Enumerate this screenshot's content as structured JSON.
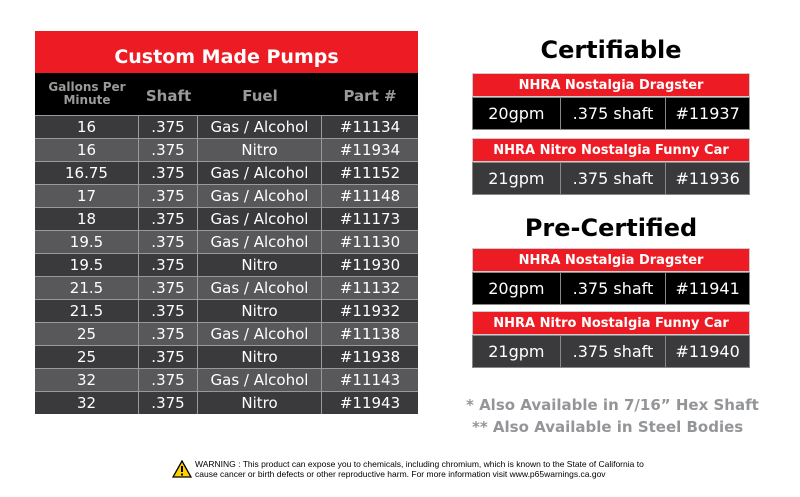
{
  "main_table": {
    "title": "Custom Made Pumps",
    "headers": [
      "Gallons Per Minute",
      "Shaft",
      "Fuel",
      "Part #"
    ],
    "rows": [
      [
        "16",
        ".375",
        "Gas / Alcohol",
        "#11134"
      ],
      [
        "16",
        ".375",
        "Nitro",
        "#11934"
      ],
      [
        "16.75",
        ".375",
        "Gas / Alcohol",
        "#11152"
      ],
      [
        "17",
        ".375",
        "Gas / Alcohol",
        "#11148"
      ],
      [
        "18",
        ".375",
        "Gas / Alcohol",
        "#11173"
      ],
      [
        "19.5",
        ".375",
        "Gas / Alcohol",
        "#11130"
      ],
      [
        "19.5",
        ".375",
        "Nitro",
        "#11930"
      ],
      [
        "21.5",
        ".375",
        "Gas / Alcohol",
        "#11132"
      ],
      [
        "21.5",
        ".375",
        "Nitro",
        "#11932"
      ],
      [
        "25",
        ".375",
        "Gas / Alcohol",
        "#11138"
      ],
      [
        "25",
        ".375",
        "Nitro",
        "#11938"
      ],
      [
        "32",
        ".375",
        "Gas / Alcohol",
        "#11143"
      ],
      [
        "32",
        ".375",
        "Nitro",
        "#11943"
      ]
    ]
  },
  "certifiable": {
    "title": "Certifiable",
    "boxes": [
      {
        "name": "NHRA Nostalgia Dragster",
        "cells": [
          "20gpm",
          ".375 shaft",
          "#11937"
        ]
      },
      {
        "name": "NHRA Nitro Nostalgia Funny Car",
        "cells": [
          "21gpm",
          ".375 shaft",
          "#11936"
        ]
      }
    ]
  },
  "pre_certified": {
    "title": "Pre-Certified",
    "boxes": [
      {
        "name": "NHRA Nostalgia Dragster",
        "cells": [
          "20gpm",
          ".375 shaft",
          "#11941"
        ]
      },
      {
        "name": "NHRA Nitro Nostalgia Funny Car",
        "cells": [
          "21gpm",
          ".375 shaft",
          "#11940"
        ]
      }
    ]
  },
  "notes": [
    "* Also Available in 7/16” Hex Shaft",
    "** Also Available in Steel Bodies"
  ],
  "warning": {
    "icon": "warning-triangle-icon",
    "line1": "WARNING : This product can expose you to chemicals, including chromium, which is known to the State of California to",
    "line2": "cause cancer or birth defects or other reproductive harm. For more information visit www.p65warnings.ca.gov"
  },
  "colors": {
    "red": "#ed1c24",
    "black": "#000000",
    "dark_row": "#3a3a3c",
    "light_row": "#58585a",
    "note_gray": "#939598"
  }
}
